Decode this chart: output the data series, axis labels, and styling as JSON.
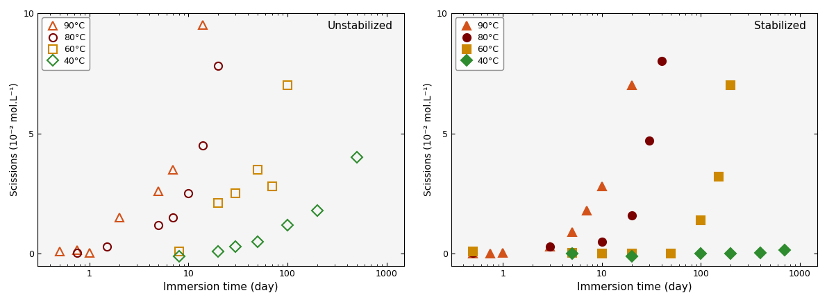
{
  "unstabilized": {
    "title": "Unstabilized",
    "series": {
      "90C": {
        "label": "90°C",
        "color": "#D2521A",
        "marker": "^",
        "fillstyle": "none",
        "x": [
          0.5,
          0.75,
          1.0,
          2.0,
          5.0,
          7.0,
          14.0
        ],
        "y": [
          0.1,
          0.15,
          0.05,
          1.5,
          2.6,
          3.5,
          9.5
        ]
      },
      "80C": {
        "label": "80°C",
        "color": "#7B0000",
        "marker": "o",
        "fillstyle": "none",
        "x": [
          0.75,
          1.5,
          5.0,
          7.0,
          10.0,
          14.0,
          20.0
        ],
        "y": [
          0.05,
          0.3,
          1.2,
          1.5,
          2.5,
          4.5,
          7.8
        ]
      },
      "60C": {
        "label": "60°C",
        "color": "#CC8800",
        "marker": "s",
        "fillstyle": "none",
        "x": [
          8.0,
          20.0,
          30.0,
          50.0,
          70.0,
          100.0
        ],
        "y": [
          0.1,
          2.1,
          2.5,
          3.5,
          2.8,
          7.0
        ]
      },
      "40C": {
        "label": "40°C",
        "color": "#2E8B2E",
        "marker": "D",
        "fillstyle": "none",
        "x": [
          8.0,
          20.0,
          30.0,
          50.0,
          100.0,
          200.0,
          500.0
        ],
        "y": [
          -0.1,
          0.1,
          0.3,
          0.5,
          1.2,
          1.8,
          4.0
        ]
      }
    }
  },
  "stabilized": {
    "title": "Stabilized",
    "series": {
      "90C": {
        "label": "90°C",
        "color": "#D2521A",
        "marker": "^",
        "fillstyle": "full",
        "x": [
          0.5,
          0.75,
          1.0,
          3.0,
          5.0,
          7.0,
          10.0,
          20.0
        ],
        "y": [
          0.0,
          0.0,
          0.05,
          0.3,
          0.9,
          1.8,
          2.8,
          7.0
        ]
      },
      "80C": {
        "label": "80°C",
        "color": "#7B0000",
        "marker": "o",
        "fillstyle": "full",
        "x": [
          0.5,
          3.0,
          10.0,
          20.0,
          30.0,
          40.0
        ],
        "y": [
          0.05,
          0.3,
          0.5,
          1.6,
          4.7,
          8.0
        ]
      },
      "60C": {
        "label": "60°C",
        "color": "#CC8800",
        "marker": "s",
        "fillstyle": "full",
        "x": [
          0.5,
          5.0,
          10.0,
          20.0,
          50.0,
          100.0,
          150.0,
          200.0
        ],
        "y": [
          0.1,
          0.05,
          0.0,
          0.0,
          0.0,
          1.4,
          3.2,
          7.0
        ]
      },
      "40C": {
        "label": "40°C",
        "color": "#2E8B2E",
        "marker": "D",
        "fillstyle": "full",
        "x": [
          5.0,
          20.0,
          100.0,
          200.0,
          400.0,
          700.0
        ],
        "y": [
          0.0,
          -0.1,
          0.0,
          0.0,
          0.05,
          0.15
        ]
      }
    }
  },
  "xlabel": "Immersion time (day)",
  "ylabel_left": "Scissions (10⁻² mol.L⁻¹)",
  "ylabel_right": "Scissions (10⁻² mol.L⁻¹)",
  "xlim": [
    0.3,
    1500
  ],
  "ylim": [
    -0.5,
    10
  ],
  "yticks": [
    0,
    5,
    10
  ],
  "marker_size": 8,
  "bg_color": "#f5f5f5"
}
